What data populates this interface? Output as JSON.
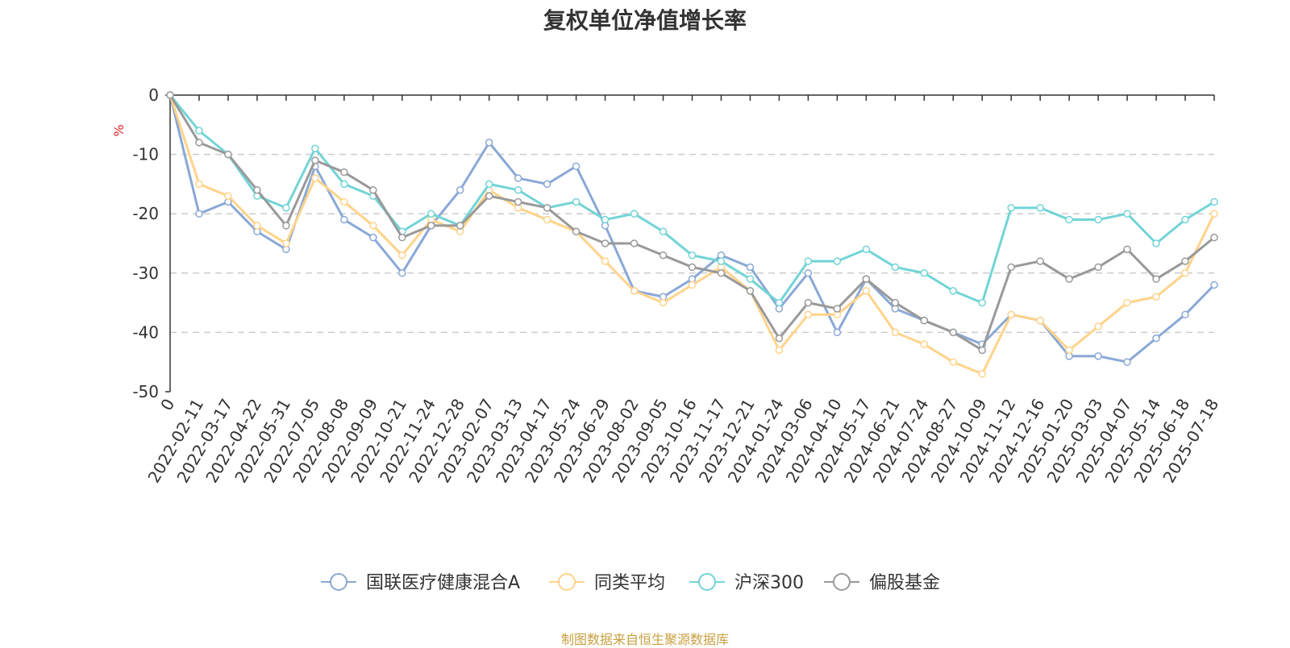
{
  "chart_data": {
    "type": "line",
    "title": "复权单位净值增长率",
    "ylabel": "%",
    "ylim": [
      -50,
      0
    ],
    "yticks": [
      0,
      -10,
      -20,
      -30,
      -40,
      -50
    ],
    "grid": true,
    "legend_position": "bottom",
    "x_tick_labels": [
      "0",
      "2022-02-11",
      "2022-03-17",
      "2022-04-22",
      "2022-05-31",
      "2022-07-05",
      "2022-08-08",
      "2022-09-09",
      "2022-10-21",
      "2022-11-24",
      "2022-12-28",
      "2023-02-07",
      "2023-03-13",
      "2023-04-17",
      "2023-05-24",
      "2023-06-29",
      "2023-08-02",
      "2023-09-05",
      "2023-10-16",
      "2023-11-17",
      "2023-12-21",
      "2024-01-24",
      "2024-03-06",
      "2024-04-10",
      "2024-05-17",
      "2024-06-21",
      "2024-07-24",
      "2024-08-27",
      "2024-10-09",
      "2024-11-12",
      "2024-12-16",
      "2025-01-20",
      "2025-03-03",
      "2025-04-07",
      "2025-05-14",
      "2025-06-18",
      "2025-07-18"
    ],
    "series": [
      {
        "name": "国联医疗健康混合A",
        "color": "#8aa8d6",
        "values": [
          0,
          -20,
          -18,
          -23,
          -26,
          -12,
          -21,
          -24,
          -30,
          -22,
          -16,
          -8,
          -14,
          -15,
          -12,
          -22,
          -33,
          -34,
          -31,
          -27,
          -29,
          -36,
          -30,
          -40,
          -31,
          -36,
          -38,
          -40,
          -42,
          -37,
          -38,
          -44,
          -44,
          -45,
          -41,
          -37,
          -32
        ]
      },
      {
        "name": "同类平均",
        "color": "#ffd38a",
        "values": [
          0,
          -15,
          -17,
          -22,
          -25,
          -14,
          -18,
          -22,
          -27,
          -21,
          -23,
          -16,
          -19,
          -21,
          -23,
          -28,
          -33,
          -35,
          -32,
          -29,
          -33,
          -43,
          -37,
          -37,
          -33,
          -40,
          -42,
          -45,
          -47,
          -37,
          -38,
          -43,
          -39,
          -35,
          -34,
          -30,
          -20
        ]
      },
      {
        "name": "沪深300",
        "color": "#72d4d6",
        "values": [
          0,
          -6,
          -10,
          -17,
          -19,
          -9,
          -15,
          -17,
          -23,
          -20,
          -22,
          -15,
          -16,
          -19,
          -18,
          -21,
          -20,
          -23,
          -27,
          -28,
          -31,
          -35,
          -28,
          -28,
          -26,
          -29,
          -30,
          -33,
          -35,
          -19,
          -19,
          -21,
          -21,
          -20,
          -25,
          -21,
          -18
        ]
      },
      {
        "name": "偏股基金",
        "color": "#999999",
        "values": [
          0,
          -8,
          -10,
          -16,
          -22,
          -11,
          -13,
          -16,
          -24,
          -22,
          -22,
          -17,
          -18,
          -19,
          -23,
          -25,
          -25,
          -27,
          -29,
          -30,
          -33,
          -41,
          -35,
          -36,
          -31,
          -35,
          -38,
          -40,
          -43,
          -29,
          -28,
          -31,
          -29,
          -26,
          -31,
          -28,
          -24
        ]
      }
    ],
    "legend_labels": [
      "国联医疗健康混合A",
      "同类平均",
      "沪深300",
      "偏股基金"
    ]
  },
  "source_note": "制图数据来自恒生聚源数据库"
}
